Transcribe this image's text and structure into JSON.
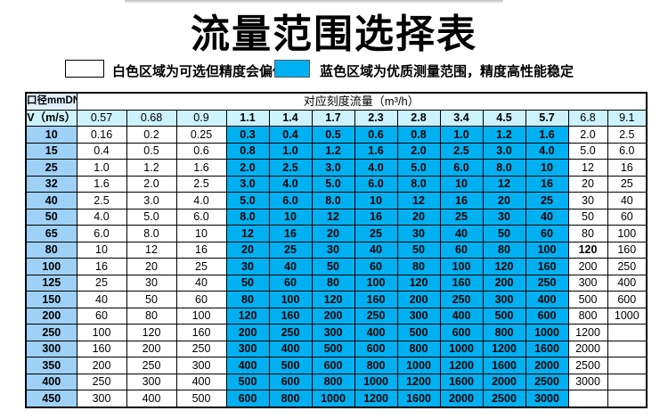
{
  "title": "流量范围选择表",
  "legend": {
    "white_label": "白色区域为可选但精度会偏低",
    "blue_label": "蓝色区域为优质测量范围，精度高性能稳定"
  },
  "colors": {
    "optimal_blue": "#00b0f0",
    "dn_column_blue": "#9fd0f6",
    "velocity_row_cyan": "#ccf2fb",
    "corner_cell": "#e3effd"
  },
  "table": {
    "corner_header": "口径mmDN",
    "flow_header": "对应刻度流量（m³/h）",
    "velocity_header": "V（m/s）",
    "velocities": [
      "0.57",
      "0.68",
      "0.9",
      "1.1",
      "1.4",
      "1.7",
      "2.3",
      "2.8",
      "3.4",
      "4.5",
      "5.7",
      "6.8",
      "9.1"
    ],
    "optimal_col_indices": [
      3,
      10
    ],
    "emphasized_cells": [
      [
        7,
        11
      ]
    ],
    "rows": [
      {
        "dn": "10",
        "values": [
          "0.16",
          "0.2",
          "0.25",
          "0.3",
          "0.4",
          "0.5",
          "0.6",
          "0.8",
          "1.0",
          "1.2",
          "1.6",
          "2.0",
          "2.5"
        ]
      },
      {
        "dn": "15",
        "values": [
          "0.4",
          "0.5",
          "0.6",
          "0.8",
          "1.0",
          "1.2",
          "1.6",
          "2.0",
          "2.5",
          "3.0",
          "4.0",
          "5.0",
          "6.0"
        ]
      },
      {
        "dn": "25",
        "values": [
          "1.0",
          "1.2",
          "1.6",
          "2.0",
          "2.5",
          "3.0",
          "4.0",
          "5.0",
          "6.0",
          "8.0",
          "10",
          "12",
          "16"
        ]
      },
      {
        "dn": "32",
        "values": [
          "1.6",
          "2.0",
          "2.5",
          "3.0",
          "4.0",
          "5.0",
          "6.0",
          "8.0",
          "10",
          "12",
          "16",
          "20",
          "25"
        ]
      },
      {
        "dn": "40",
        "values": [
          "2.5",
          "3.0",
          "4.0",
          "5.0",
          "6.0",
          "8.0",
          "10",
          "12",
          "16",
          "20",
          "25",
          "30",
          "40"
        ]
      },
      {
        "dn": "50",
        "values": [
          "4.0",
          "5.0",
          "6.0",
          "8.0",
          "10",
          "12",
          "16",
          "20",
          "25",
          "30",
          "40",
          "50",
          "60"
        ]
      },
      {
        "dn": "65",
        "values": [
          "6.0",
          "8.0",
          "10",
          "12",
          "16",
          "20",
          "25",
          "30",
          "40",
          "50",
          "60",
          "80",
          "100"
        ]
      },
      {
        "dn": "80",
        "values": [
          "10",
          "12",
          "16",
          "20",
          "25",
          "30",
          "40",
          "50",
          "60",
          "80",
          "100",
          "120",
          "160"
        ]
      },
      {
        "dn": "100",
        "values": [
          "16",
          "20",
          "25",
          "30",
          "40",
          "50",
          "60",
          "80",
          "100",
          "120",
          "160",
          "200",
          "250"
        ]
      },
      {
        "dn": "125",
        "values": [
          "25",
          "30",
          "40",
          "50",
          "60",
          "80",
          "100",
          "120",
          "160",
          "200",
          "250",
          "300",
          "400"
        ]
      },
      {
        "dn": "150",
        "values": [
          "40",
          "50",
          "60",
          "80",
          "100",
          "120",
          "160",
          "200",
          "250",
          "300",
          "400",
          "500",
          "600"
        ]
      },
      {
        "dn": "200",
        "values": [
          "60",
          "80",
          "100",
          "120",
          "160",
          "200",
          "250",
          "300",
          "400",
          "500",
          "600",
          "800",
          "1000"
        ]
      },
      {
        "dn": "250",
        "values": [
          "100",
          "120",
          "160",
          "200",
          "250",
          "300",
          "400",
          "500",
          "600",
          "800",
          "1000",
          "1200",
          ""
        ]
      },
      {
        "dn": "300",
        "values": [
          "160",
          "200",
          "250",
          "300",
          "400",
          "500",
          "600",
          "800",
          "1000",
          "1200",
          "1600",
          "2000",
          ""
        ]
      },
      {
        "dn": "350",
        "values": [
          "200",
          "250",
          "300",
          "400",
          "500",
          "600",
          "800",
          "1000",
          "1200",
          "1600",
          "2000",
          "2500",
          ""
        ]
      },
      {
        "dn": "400",
        "values": [
          "250",
          "300",
          "400",
          "500",
          "600",
          "800",
          "1000",
          "1200",
          "1600",
          "2000",
          "2500",
          "3000",
          ""
        ]
      },
      {
        "dn": "450",
        "values": [
          "300",
          "400",
          "500",
          "600",
          "800",
          "1000",
          "1200",
          "1600",
          "2000",
          "2500",
          "3000",
          "",
          ""
        ]
      }
    ]
  }
}
